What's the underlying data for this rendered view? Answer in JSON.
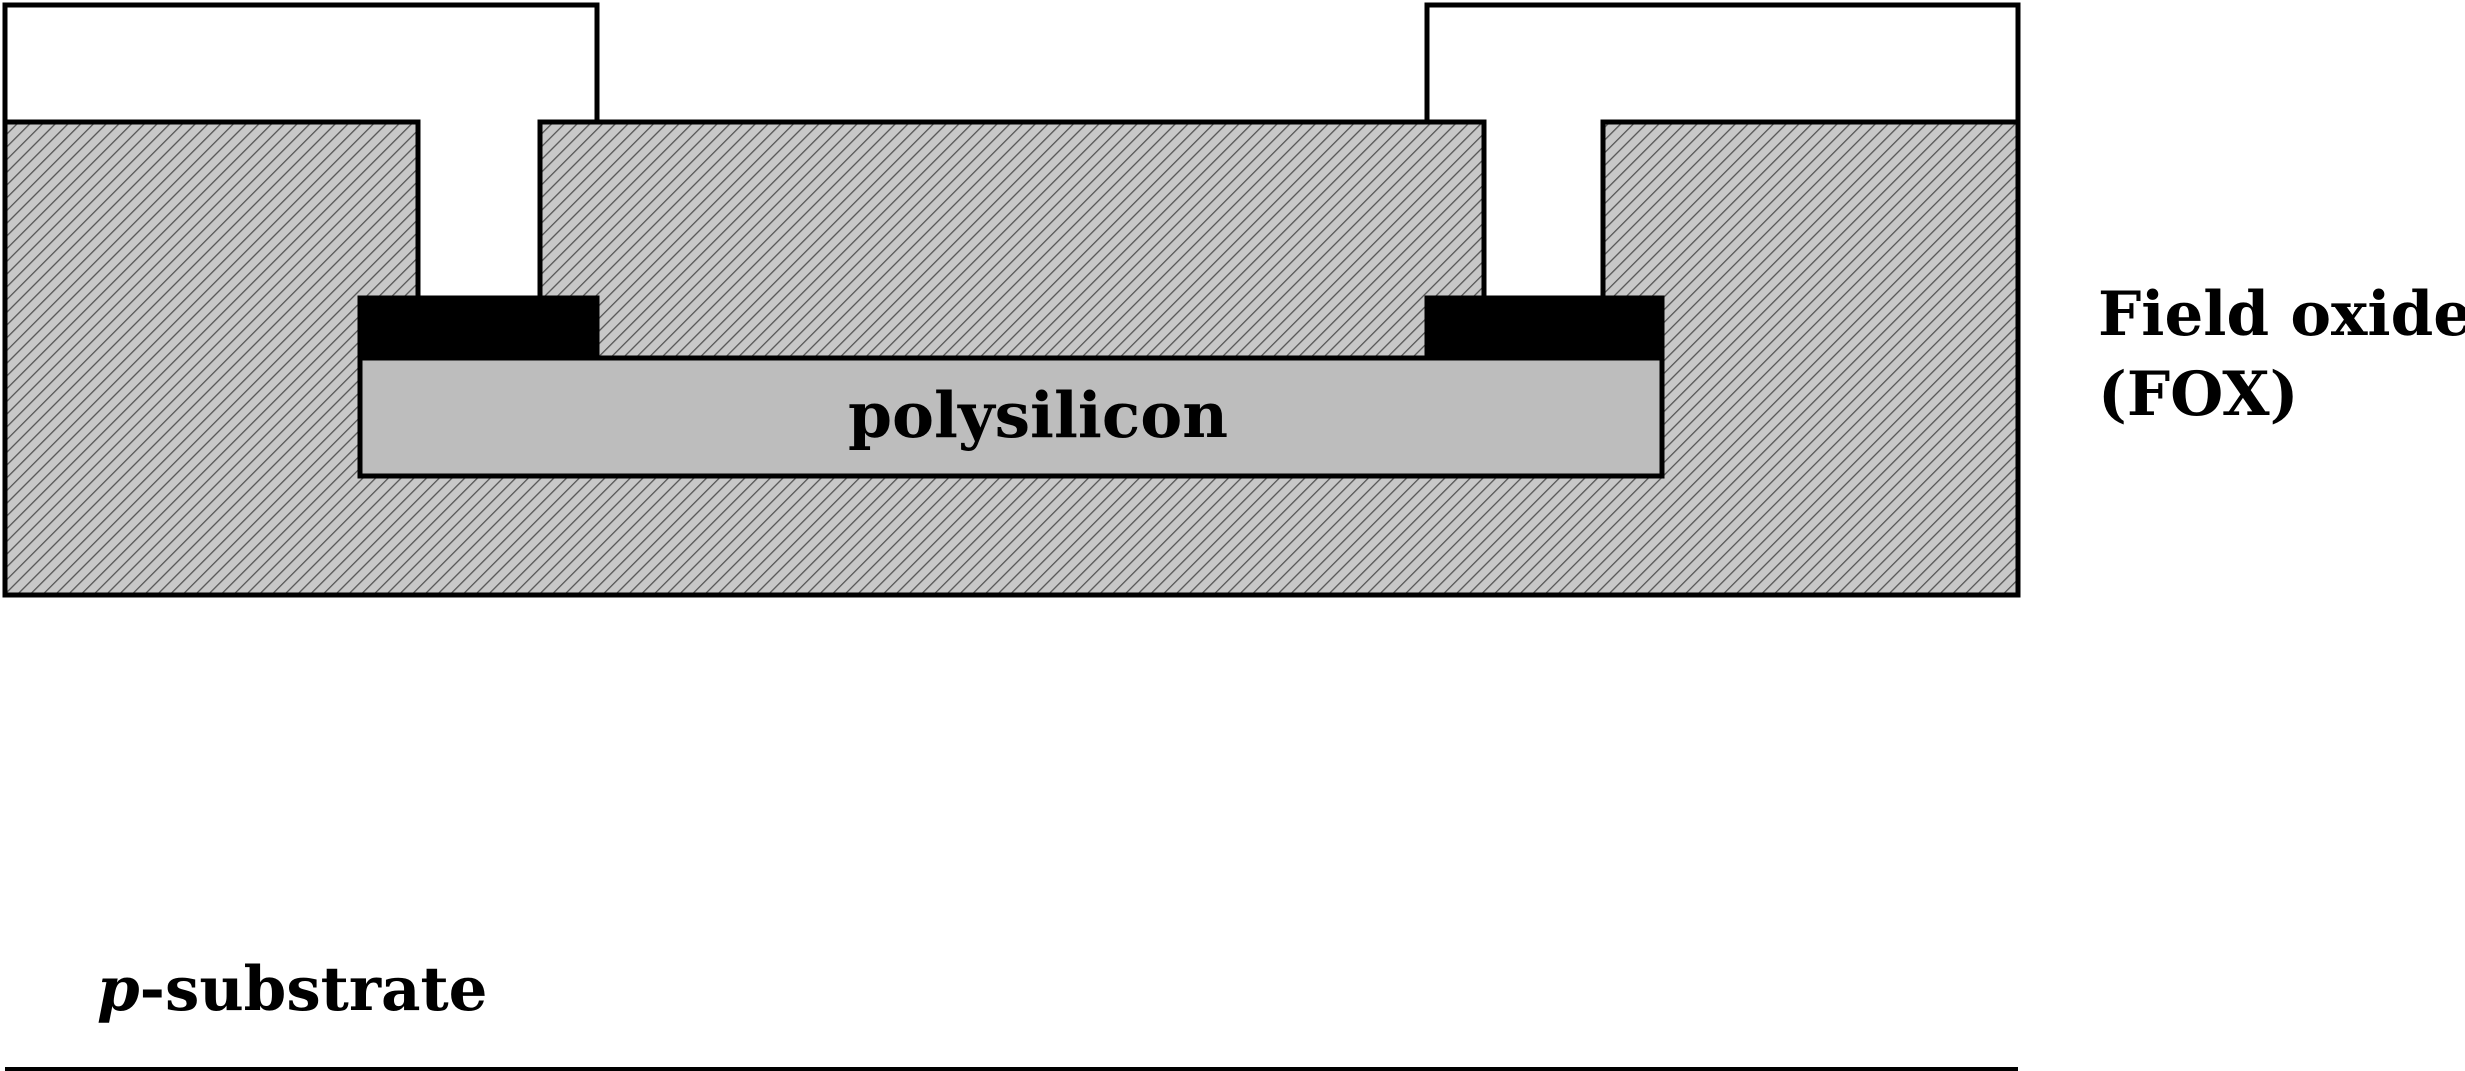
{
  "labels": {
    "polysilicon": "polysilicon",
    "field_oxide_line1": "Field oxide",
    "field_oxide_line2": "(FOX)",
    "substrate_prefix": "p",
    "substrate_suffix": "-substrate"
  },
  "colors": {
    "stroke": "#000000",
    "oxide_fill": "#c8c8c8",
    "hatch_line": "#555555",
    "polysilicon_fill": "#bdbdbd",
    "contact_fill": "#000000",
    "metal_fill": "#ffffff",
    "background": "#ffffff"
  }
}
